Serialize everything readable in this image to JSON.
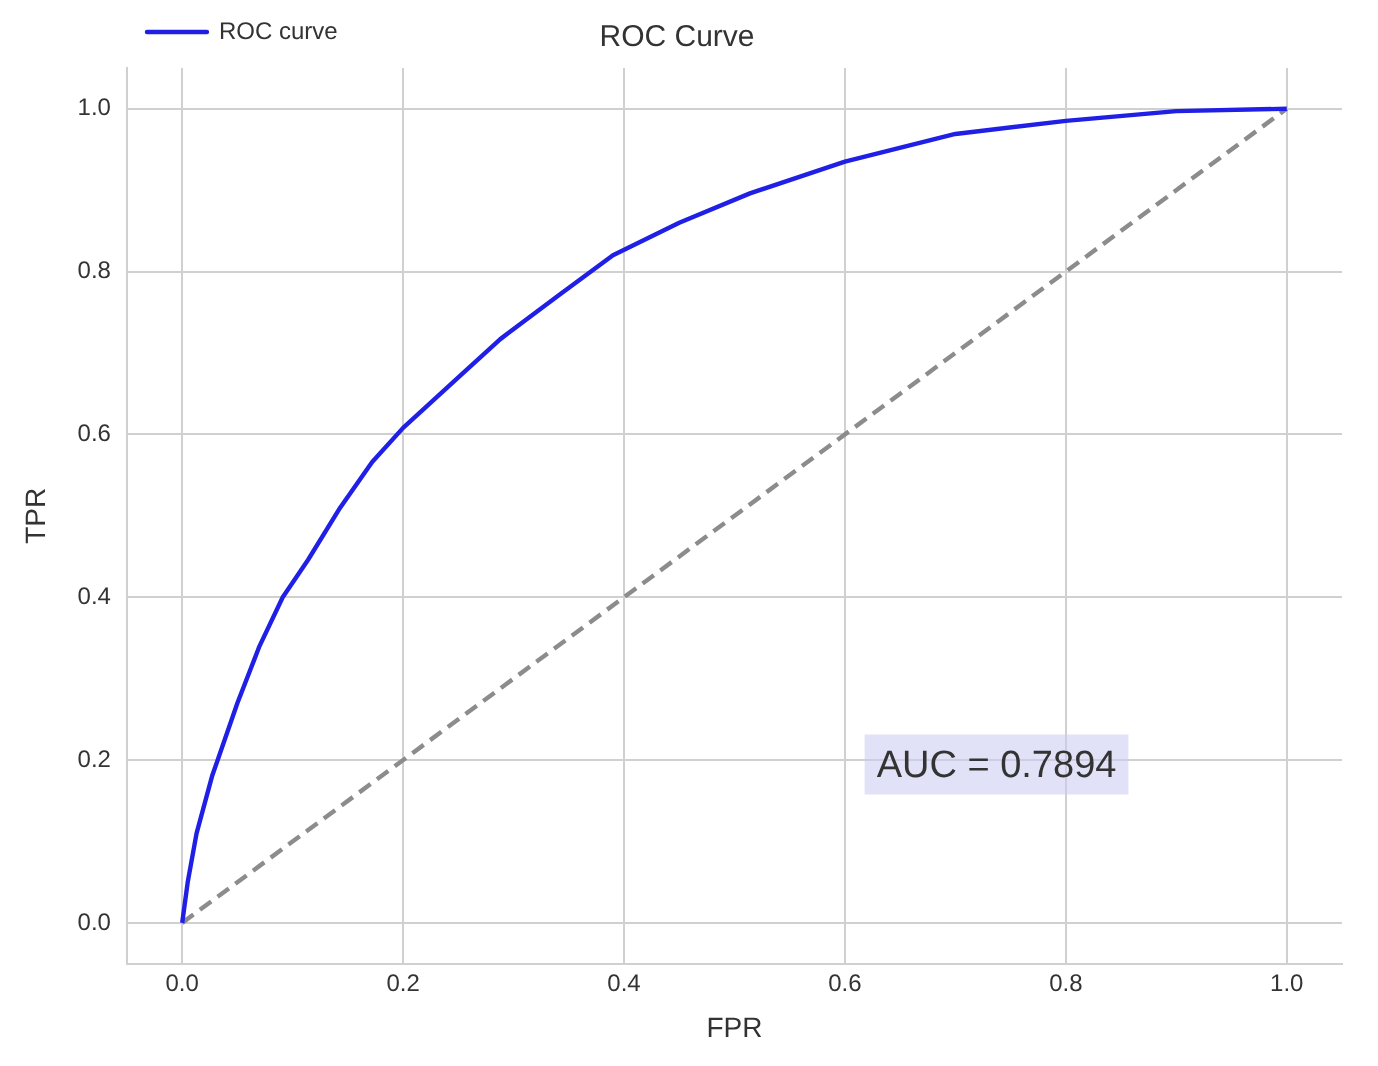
{
  "chart_data": {
    "type": "line",
    "title": "ROC Curve",
    "xlabel": "FPR",
    "ylabel": "TPR",
    "xlim": [
      -0.05,
      1.05
    ],
    "ylim": [
      -0.05,
      1.05
    ],
    "xticks": [
      {
        "value": 0,
        "label": "0.0"
      },
      {
        "value": 0.2,
        "label": "0.2"
      },
      {
        "value": 0.4,
        "label": "0.4"
      },
      {
        "value": 0.6,
        "label": "0.6"
      },
      {
        "value": 0.8,
        "label": "0.8"
      },
      {
        "value": 1,
        "label": "1.0"
      }
    ],
    "yticks": [
      {
        "value": 0,
        "label": "0.0"
      },
      {
        "value": 0.2,
        "label": "0.2"
      },
      {
        "value": 0.4,
        "label": "0.4"
      },
      {
        "value": 0.6,
        "label": "0.6"
      },
      {
        "value": 0.8,
        "label": "0.8"
      },
      {
        "value": 1,
        "label": "1.0"
      }
    ],
    "grid": true,
    "legend": "top left",
    "marker": "none",
    "series": [
      {
        "name": "ROC curve",
        "color": "#1f1fe6",
        "line_style": "solid",
        "x": [
          0,
          0.005,
          0.013,
          0.027,
          0.05,
          0.07,
          0.091,
          0.114,
          0.143,
          0.172,
          0.2,
          0.25,
          0.288,
          0.34,
          0.39,
          0.45,
          0.514,
          0.6,
          0.7,
          0.8,
          0.9,
          1
        ],
        "values": [
          0,
          0.05,
          0.11,
          0.18,
          0.27,
          0.34,
          0.4,
          0.446,
          0.51,
          0.566,
          0.608,
          0.67,
          0.717,
          0.77,
          0.82,
          0.86,
          0.896,
          0.935,
          0.969,
          0.985,
          0.997,
          1
        ]
      },
      {
        "color": "#8c8c8c",
        "line_style": "dashed",
        "x": [
          0,
          1
        ],
        "values": [
          0,
          1
        ]
      }
    ],
    "annotations": [
      "AUC = 0.7894"
    ]
  }
}
